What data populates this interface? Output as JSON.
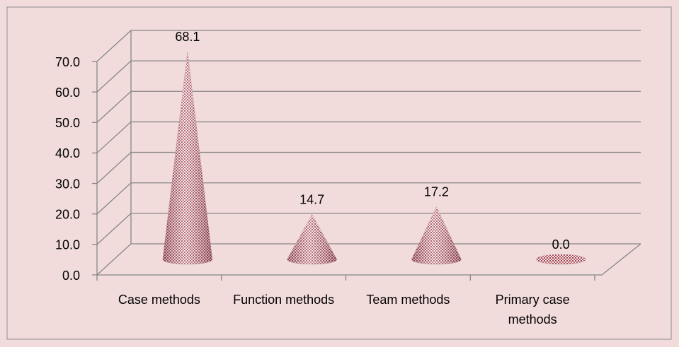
{
  "chart_data": {
    "type": "cone",
    "categories": [
      "Case methods",
      "Function methods",
      "Team methods",
      "Primary case methods"
    ],
    "values": [
      68.1,
      14.7,
      17.2,
      0.0
    ],
    "value_labels": [
      "68.1",
      "14.7",
      "17.2",
      "0.0"
    ],
    "color": "#9b3f4c",
    "ylim": [
      0,
      70
    ],
    "yticks": [
      {
        "value": 0,
        "label": "0.0"
      },
      {
        "value": 10,
        "label": "10.0"
      },
      {
        "value": 20,
        "label": "20.0"
      },
      {
        "value": 30,
        "label": "30.0"
      },
      {
        "value": 40,
        "label": "40.0"
      },
      {
        "value": 50,
        "label": "50.0"
      },
      {
        "value": 60,
        "label": "60.0"
      },
      {
        "value": 70,
        "label": "70.0"
      }
    ],
    "grid": true
  }
}
